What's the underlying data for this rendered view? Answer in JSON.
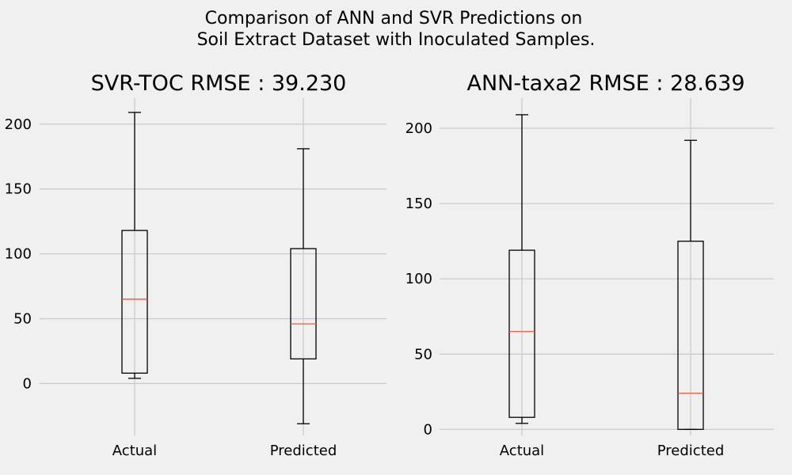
{
  "figure": {
    "title_line1": "Comparison of ANN and SVR Predictions on",
    "title_line2": "Soil Extract Dataset with Inoculated Samples.",
    "background": "#f0f0f0"
  },
  "colors": {
    "grid": "#cbcbcb",
    "box": "#000000",
    "median": "#fc4f30"
  },
  "chart_data": [
    {
      "type": "box",
      "title": "SVR-TOC RMSE : 39.230",
      "xlabel": "",
      "ylabel": "",
      "grid": true,
      "categories": [
        "Actual",
        "Predicted"
      ],
      "ylim": [
        -40,
        220
      ],
      "yticks": [
        0,
        50,
        100,
        150,
        200
      ],
      "boxes": [
        {
          "label": "Actual",
          "whislo": 4,
          "q1": 8,
          "med": 65,
          "q3": 118,
          "whishi": 209
        },
        {
          "label": "Predicted",
          "whislo": -31,
          "q1": 19,
          "med": 46,
          "q3": 104,
          "whishi": 181
        }
      ]
    },
    {
      "type": "box",
      "title": "ANN-taxa2 RMSE : 28.639",
      "xlabel": "",
      "ylabel": "",
      "grid": true,
      "categories": [
        "Actual",
        "Predicted"
      ],
      "ylim": [
        -4,
        220
      ],
      "yticks": [
        0,
        50,
        100,
        150,
        200
      ],
      "boxes": [
        {
          "label": "Actual",
          "whislo": 4,
          "q1": 8,
          "med": 65,
          "q3": 119,
          "whishi": 209
        },
        {
          "label": "Predicted",
          "whislo": 0,
          "q1": 0,
          "med": 24,
          "q3": 125,
          "whishi": 192
        }
      ]
    }
  ]
}
